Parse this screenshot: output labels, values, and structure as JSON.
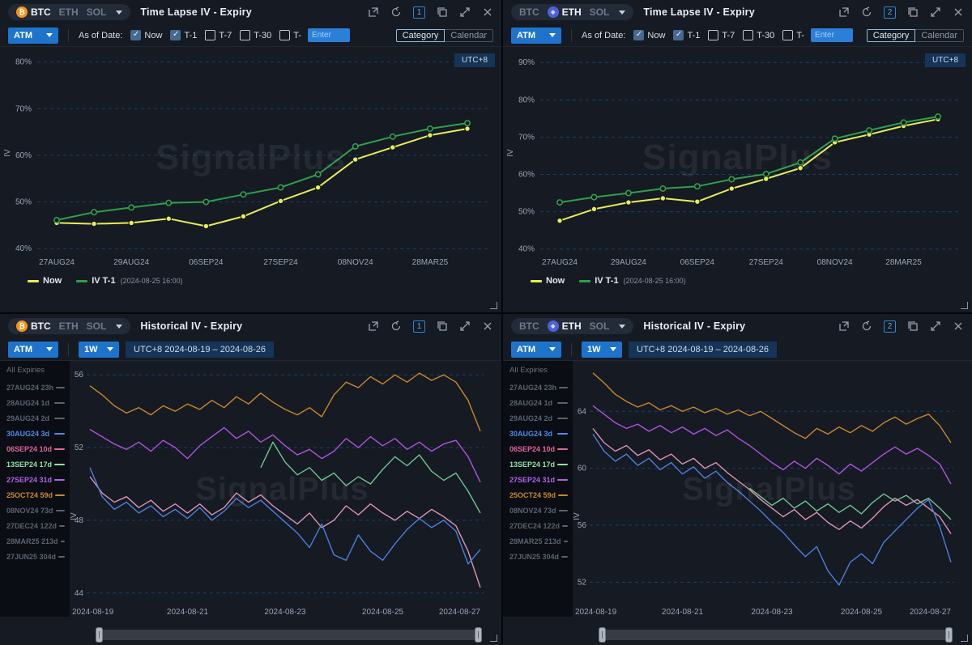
{
  "app": {
    "watermark": "SignalPlus",
    "utc_badge": "UTC+8"
  },
  "shared": {
    "coins": [
      "BTC",
      "ETH",
      "SOL"
    ],
    "atm": "ATM",
    "range": "1W",
    "date_range": "UTC+8 2024-08-19 – 2024-08-26",
    "as_of_label": "As of Date:",
    "enter_placeholder": "Enter",
    "checkboxes": [
      {
        "label": "Now",
        "checked": true
      },
      {
        "label": "T-1",
        "checked": true
      },
      {
        "label": "T-7",
        "checked": false
      },
      {
        "label": "T-30",
        "checked": false
      },
      {
        "label": "T-",
        "checked": false
      }
    ],
    "view_toggle": {
      "category": "Category",
      "calendar": "Calendar"
    },
    "legend": [
      {
        "label": "Now",
        "sub": "",
        "color": "#E7ED55"
      },
      {
        "label": "IV T-1",
        "sub": "(2024-08-25 16:00)",
        "color": "#2EA04A"
      }
    ]
  },
  "panels": {
    "tl": {
      "title": "Time Lapse IV - Expiry",
      "number": "1",
      "selected_coin": "BTC"
    },
    "tr": {
      "title": "Time Lapse IV - Expiry",
      "number": "2",
      "selected_coin": "ETH"
    },
    "bl": {
      "title": "Historical IV - Expiry",
      "number": "1",
      "selected_coin": "BTC"
    },
    "br": {
      "title": "Historical IV - Expiry",
      "number": "2",
      "selected_coin": "ETH"
    }
  },
  "expiry_sidebar": {
    "header": "All Expiries",
    "items": [
      {
        "label": "27AUG24 23h",
        "active": false,
        "color": "#59636F"
      },
      {
        "label": "28AUG24 1d",
        "active": false,
        "color": "#59636F"
      },
      {
        "label": "29AUG24 2d",
        "active": false,
        "color": "#59636F"
      },
      {
        "label": "30AUG24 3d",
        "active": true,
        "color": "#4A8CE8"
      },
      {
        "label": "06SEP24 10d",
        "active": true,
        "color": "#E0659E"
      },
      {
        "label": "13SEP24 17d",
        "active": true,
        "color": "#8BE3A6"
      },
      {
        "label": "27SEP24 31d",
        "active": true,
        "color": "#B45FE8"
      },
      {
        "label": "25OCT24 59d",
        "active": true,
        "color": "#C8872B"
      },
      {
        "label": "08NOV24 73d",
        "active": false,
        "color": "#59636F"
      },
      {
        "label": "27DEC24 122d",
        "active": false,
        "color": "#59636F"
      },
      {
        "label": "28MAR25 213d",
        "active": false,
        "color": "#59636F"
      },
      {
        "label": "27JUN25 304d",
        "active": false,
        "color": "#59636F"
      }
    ]
  },
  "chart_data": [
    {
      "target": "tl-chart",
      "type": "line",
      "title": "BTC Time Lapse IV - Expiry",
      "xlabel": "",
      "ylabel": "IV",
      "unit": "%",
      "grid": "dashed-horizontal",
      "ylim": [
        39.5,
        81.5
      ],
      "yticks": [
        40,
        50,
        60,
        70,
        80
      ],
      "categories": [
        "27AUG24",
        "28AUG24",
        "29AUG24",
        "30AUG24",
        "06SEP24",
        "13SEP24",
        "27SEP24",
        "25OCT24",
        "08NOV24",
        "27DEC24",
        "28MAR25",
        "27JUN25"
      ],
      "x_tick_indices": [
        0,
        2,
        4,
        6,
        8,
        10
      ],
      "series": [
        {
          "name": "Now",
          "color": "#E7ED55",
          "marker": "filled",
          "values": [
            45.5,
            45.3,
            45.5,
            46.4,
            44.8,
            46.9,
            50.2,
            53.1,
            59.1,
            61.7,
            64.3,
            65.7
          ]
        },
        {
          "name": "IV T-1 (2024-08-25 16:00)",
          "color": "#2EA04A",
          "marker": "hollow",
          "values": [
            46.1,
            47.8,
            48.8,
            49.8,
            50.0,
            51.6,
            53.1,
            55.9,
            61.9,
            64.0,
            65.7,
            66.9
          ]
        }
      ]
    },
    {
      "target": "tr-chart",
      "type": "line",
      "title": "ETH Time Lapse IV - Expiry",
      "xlabel": "",
      "ylabel": "IV",
      "unit": "%",
      "grid": "dashed-horizontal",
      "ylim": [
        39.5,
        92.0
      ],
      "yticks": [
        40,
        50,
        60,
        70,
        80,
        90
      ],
      "categories": [
        "27AUG24",
        "28AUG24",
        "29AUG24",
        "30AUG24",
        "06SEP24",
        "13SEP24",
        "27SEP24",
        "25OCT24",
        "08NOV24",
        "27DEC24",
        "28MAR25",
        "27JUN25"
      ],
      "x_tick_indices": [
        0,
        2,
        4,
        6,
        8,
        10
      ],
      "series": [
        {
          "name": "Now",
          "color": "#E7ED55",
          "marker": "filled",
          "values": [
            47.6,
            50.7,
            52.5,
            53.6,
            52.7,
            56.2,
            58.8,
            61.7,
            68.6,
            70.7,
            73.0,
            74.8
          ]
        },
        {
          "name": "IV T-1 (2024-08-25 16:00)",
          "color": "#2EA04A",
          "marker": "hollow",
          "values": [
            52.5,
            53.9,
            55.0,
            56.2,
            56.8,
            58.7,
            60.1,
            63.2,
            69.6,
            71.8,
            73.9,
            75.5
          ]
        }
      ]
    },
    {
      "target": "bl-chart",
      "type": "line",
      "title": "BTC Historical IV - Expiry",
      "xlabel": "",
      "ylabel": "IV",
      "grid": "dashed-horizontal",
      "ylim": [
        43.5,
        56.5
      ],
      "yticks": [
        44,
        48,
        52,
        56
      ],
      "x_start": "2024-08-19",
      "x_end": "2024-08-27",
      "step_days": 0.25,
      "span_days": 8,
      "x_tick_days": [
        0,
        2,
        4,
        6,
        8
      ],
      "x_tick_labels": [
        "2024-08-19",
        "2024-08-21",
        "2024-08-23",
        "2024-08-25",
        "2024-08-27"
      ],
      "series": [
        {
          "name": "25OCT24 59d",
          "color": "#C8872B",
          "start_day": 0,
          "values": [
            55.4,
            54.9,
            54.3,
            53.9,
            54.2,
            53.8,
            54.3,
            54.0,
            54.4,
            54.1,
            54.6,
            54.2,
            54.8,
            54.4,
            55.0,
            54.5,
            54.1,
            53.8,
            54.2,
            53.7,
            54.9,
            55.6,
            55.3,
            55.9,
            55.5,
            56.0,
            55.6,
            56.1,
            55.7,
            56.0,
            55.6,
            54.6,
            52.9
          ]
        },
        {
          "name": "27SEP24 31d",
          "color": "#B052DC",
          "start_day": 0,
          "values": [
            53.0,
            52.6,
            52.2,
            51.9,
            52.3,
            51.8,
            52.4,
            52.0,
            51.4,
            52.1,
            52.6,
            53.1,
            52.5,
            52.9,
            52.3,
            52.7,
            52.1,
            51.6,
            51.9,
            51.4,
            51.8,
            52.5,
            52.0,
            52.6,
            52.1,
            52.5,
            51.9,
            52.3,
            51.8,
            52.2,
            52.4,
            51.5,
            50.1
          ]
        },
        {
          "name": "13SEP24 17d",
          "color": "#6FC493",
          "start_day": 3.5,
          "values": [
            50.9,
            52.3,
            51.2,
            50.5,
            50.9,
            50.2,
            50.6,
            49.9,
            50.4,
            50.0,
            50.8,
            51.5,
            51.0,
            51.6,
            50.7,
            50.2,
            50.6,
            49.6,
            48.4
          ]
        },
        {
          "name": "06SEP24 10d",
          "color": "#DD93B3",
          "start_day": 0,
          "values": [
            50.4,
            49.5,
            49.0,
            49.3,
            48.7,
            49.1,
            48.5,
            48.9,
            48.4,
            48.9,
            48.3,
            48.7,
            49.5,
            49.0,
            49.4,
            48.8,
            48.3,
            47.8,
            48.4,
            47.6,
            48.0,
            48.8,
            48.3,
            48.9,
            48.4,
            48.0,
            48.5,
            48.1,
            48.6,
            48.2,
            47.7,
            46.3,
            44.3
          ]
        },
        {
          "name": "30AUG24 3d",
          "color": "#4C7EDB",
          "start_day": 0,
          "values": [
            50.9,
            49.3,
            48.6,
            49.0,
            48.4,
            48.8,
            48.2,
            48.6,
            48.1,
            48.7,
            48.0,
            48.5,
            49.2,
            48.7,
            49.1,
            48.5,
            47.9,
            47.3,
            46.5,
            47.8,
            46.1,
            45.8,
            47.2,
            46.3,
            45.8,
            46.7,
            47.5,
            48.1,
            47.6,
            48.0,
            47.4,
            45.6,
            46.4
          ]
        }
      ]
    },
    {
      "target": "br-chart",
      "type": "line",
      "title": "ETH Historical IV - Expiry",
      "xlabel": "",
      "ylabel": "IV",
      "grid": "dashed-horizontal",
      "ylim": [
        50.6,
        67.2
      ],
      "yticks": [
        52,
        56,
        60,
        64
      ],
      "x_start": "2024-08-19",
      "x_end": "2024-08-27",
      "step_days": 0.25,
      "span_days": 8,
      "x_tick_days": [
        0,
        2,
        4,
        6,
        8
      ],
      "x_tick_labels": [
        "2024-08-19",
        "2024-08-21",
        "2024-08-23",
        "2024-08-25",
        "2024-08-27"
      ],
      "series": [
        {
          "name": "25OCT24 59d",
          "color": "#C8872B",
          "start_day": 0,
          "values": [
            66.7,
            66.0,
            65.2,
            64.7,
            64.3,
            64.6,
            64.1,
            64.4,
            64.0,
            64.3,
            63.9,
            64.2,
            63.8,
            64.1,
            63.7,
            64.0,
            63.5,
            63.0,
            62.5,
            62.1,
            62.8,
            62.4,
            62.9,
            62.5,
            63.0,
            62.6,
            63.2,
            63.6,
            63.1,
            63.5,
            63.8,
            63.0,
            61.8
          ]
        },
        {
          "name": "27SEP24 31d",
          "color": "#B052DC",
          "start_day": 0,
          "values": [
            64.4,
            63.8,
            63.2,
            62.8,
            63.1,
            62.6,
            63.0,
            62.5,
            62.9,
            62.4,
            62.8,
            62.3,
            62.7,
            62.1,
            61.6,
            61.0,
            60.4,
            59.9,
            60.5,
            60.0,
            60.7,
            60.2,
            59.6,
            60.3,
            59.8,
            60.4,
            61.0,
            61.5,
            61.0,
            61.4,
            60.9,
            60.3,
            58.9
          ]
        },
        {
          "name": "13SEP24 17d",
          "color": "#6FC493",
          "start_day": 3.5,
          "values": [
            58.6,
            58.0,
            57.4,
            57.9,
            57.2,
            57.7,
            57.0,
            57.5,
            56.9,
            57.4,
            56.8,
            57.6,
            58.2,
            57.7,
            58.1,
            57.5,
            57.9,
            57.2,
            56.4
          ]
        },
        {
          "name": "06SEP24 10d",
          "color": "#DD93B3",
          "start_day": 0,
          "values": [
            62.8,
            61.8,
            61.2,
            61.6,
            60.9,
            61.3,
            60.6,
            61.0,
            60.3,
            60.7,
            60.0,
            60.4,
            59.7,
            59.1,
            58.5,
            57.8,
            57.2,
            56.6,
            57.1,
            56.4,
            56.9,
            56.2,
            55.7,
            56.3,
            55.8,
            56.5,
            57.3,
            57.9,
            57.4,
            57.8,
            57.2,
            56.6,
            55.4
          ]
        },
        {
          "name": "30AUG24 3d",
          "color": "#4C7EDB",
          "start_day": 0,
          "values": [
            62.4,
            61.2,
            60.5,
            61.0,
            60.2,
            60.7,
            59.9,
            60.4,
            59.6,
            60.1,
            59.3,
            59.8,
            59.0,
            58.4,
            57.7,
            57.0,
            56.2,
            55.5,
            54.6,
            53.8,
            54.5,
            52.8,
            51.8,
            53.4,
            54.0,
            53.3,
            54.8,
            55.6,
            56.4,
            57.2,
            57.8,
            55.9,
            53.4
          ]
        }
      ]
    }
  ]
}
